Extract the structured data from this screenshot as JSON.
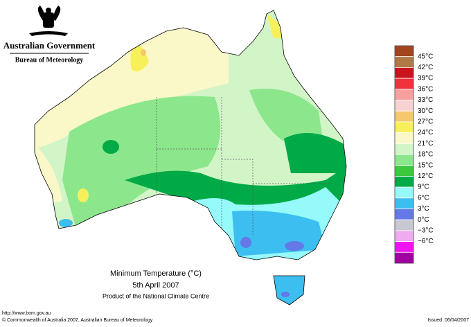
{
  "header": {
    "title": "Australian Government",
    "subtitle": "Bureau of Meteorology"
  },
  "map": {
    "title": "Minimum Temperature (°C)",
    "date": "5th April 2007",
    "source": "Product of the National Climate Centre"
  },
  "legend": {
    "colors": [
      "#a0451e",
      "#b07a46",
      "#c8141e",
      "#f0323c",
      "#f8a0a0",
      "#f8d2d2",
      "#f5c86e",
      "#f8f05a",
      "#faf8c8",
      "#d2f5c8",
      "#8ce68c",
      "#3cc83c",
      "#00aa46",
      "#96fafa",
      "#3cbef0",
      "#6478e6",
      "#c8c8d2",
      "#f0aaf0",
      "#f014f0",
      "#a000a0"
    ],
    "labels": [
      "45°C",
      "42°C",
      "39°C",
      "36°C",
      "33°C",
      "30°C",
      "27°C",
      "24°C",
      "21°C",
      "18°C",
      "15°C",
      "12°C",
      "9°C",
      "6°C",
      "3°C",
      "0°C",
      "−3°C",
      "−6°C"
    ]
  },
  "footer": {
    "url": "http://www.bom.gov.au",
    "copyright": "© Commonwealth of Australia 2007, Australian Bureau of Meteorology",
    "issued": "Issued: 06/04/2007"
  }
}
